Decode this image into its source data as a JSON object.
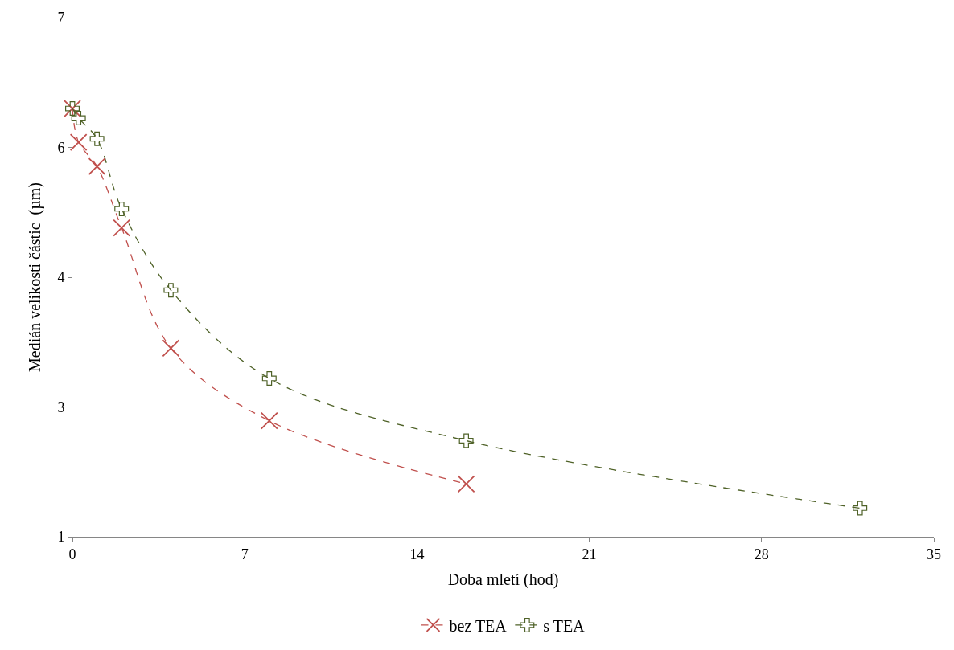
{
  "chart_data": {
    "type": "line",
    "xlabel": "Doba mletí (hod)",
    "ylabel": "Medián velikosti částic  (µm)",
    "xlim": [
      0,
      35
    ],
    "xticks": [
      0,
      7,
      14,
      21,
      28,
      35
    ],
    "ylim": [
      1,
      7
    ],
    "yticks": [
      1,
      {
        "value": 2.5,
        "label": "3"
      },
      4,
      {
        "value": 5.5,
        "label": "6"
      },
      7
    ],
    "legend": "bottom",
    "line_style": "dashed",
    "series": [
      {
        "name": "bez TEA",
        "color": "#c0504d",
        "marker": "cross",
        "x": [
          0,
          0.25,
          1,
          2,
          4,
          8,
          16
        ],
        "values": [
          5.95,
          5.56,
          5.28,
          4.57,
          3.18,
          2.34,
          1.61
        ]
      },
      {
        "name": "s TEA",
        "color": "#4f6228",
        "marker": "cross",
        "x": [
          0,
          0.25,
          1,
          2,
          4,
          8,
          16,
          32
        ],
        "values": [
          5.95,
          5.84,
          5.6,
          4.79,
          3.85,
          2.83,
          2.11,
          1.33
        ]
      }
    ]
  }
}
